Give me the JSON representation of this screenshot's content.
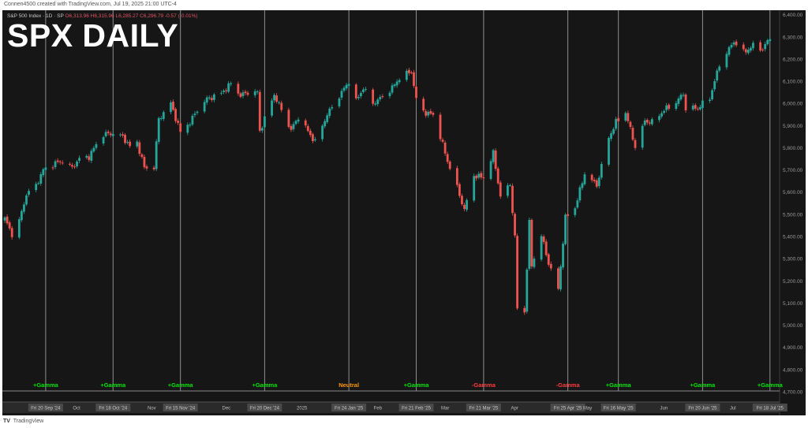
{
  "attribution": "Connen4500 created with TradingView.com, Jul 19, 2025 21:00 UTC-4",
  "legend": {
    "symbol": "S&P 500 Index · 1D · SP",
    "ohlc": "O6,313.96  H6,315.96  L6,285.27  C6,296.79  -0.57 (-0.01%)"
  },
  "footer": {
    "logo": "TV",
    "brand": "TradingView"
  },
  "colors": {
    "up": "#26a69a",
    "down": "#ef5350",
    "background": "#161616",
    "gamma_positive": "#00e600",
    "gamma_negative": "#ff3b3b",
    "gamma_neutral": "#ff9800"
  },
  "chart_data": {
    "type": "candlestick",
    "title": "SPX DAILY",
    "y_axis": {
      "ticks": [
        "6,400.00",
        "6,300.00",
        "6,200.00",
        "6,100.00",
        "6,000.00",
        "5,900.00",
        "5,800.00",
        "5,700.00",
        "5,600.00",
        "5,500.00",
        "5,400.00",
        "5,300.00",
        "5,200.00",
        "5,100.00",
        "5,000.00",
        "4,900.00",
        "4,800.00",
        "4,700.00"
      ],
      "range": [
        4700,
        6420
      ],
      "position": "right"
    },
    "x_axis": {
      "range": [
        "2024-09-02",
        "2025-07-22"
      ],
      "month_labels": [
        {
          "date": "2024-10-01",
          "label": "Oct"
        },
        {
          "date": "2024-11-01",
          "label": "Nov"
        },
        {
          "date": "2024-12-02",
          "label": "Dec"
        },
        {
          "date": "2025-01-02",
          "label": "2025"
        },
        {
          "date": "2025-02-03",
          "label": "Feb"
        },
        {
          "date": "2025-03-03",
          "label": "Mar"
        },
        {
          "date": "2025-04-01",
          "label": "Apr"
        },
        {
          "date": "2025-05-01",
          "label": "May"
        },
        {
          "date": "2025-06-02",
          "label": "Jun"
        },
        {
          "date": "2025-07-01",
          "label": "Jul"
        }
      ]
    },
    "expirations": [
      {
        "date": "2024-09-20",
        "label": "Fri 20 Sep '24",
        "gamma": "+Gamma"
      },
      {
        "date": "2024-10-18",
        "label": "Fri 18 Oct '24",
        "gamma": "+Gamma"
      },
      {
        "date": "2024-11-15",
        "label": "Fri 15 Nov '24",
        "gamma": "+Gamma"
      },
      {
        "date": "2024-12-20",
        "label": "Fri 20 Dec '24",
        "gamma": "+Gamma"
      },
      {
        "date": "2025-01-24",
        "label": "Fri 24 Jan '25",
        "gamma": "Neutral"
      },
      {
        "date": "2025-02-21",
        "label": "Fri 21 Feb '25",
        "gamma": "+Gamma"
      },
      {
        "date": "2025-03-21",
        "label": "Fri 21 Mar '25",
        "gamma": "-Gamma"
      },
      {
        "date": "2025-04-25",
        "label": "Fri 25 Apr '25",
        "gamma": "-Gamma"
      },
      {
        "date": "2025-05-16",
        "label": "Fri 16 May '25",
        "gamma": "+Gamma"
      },
      {
        "date": "2025-06-20",
        "label": "Fri 20 Jun '25",
        "gamma": "+Gamma"
      },
      {
        "date": "2025-07-18",
        "label": "Fri 18 Jul '25",
        "gamma": "+Gamma"
      }
    ],
    "close_path": [
      [
        "2024-09-03",
        5480
      ],
      [
        "2024-09-06",
        5410
      ],
      [
        "2024-09-09",
        5470
      ],
      [
        "2024-09-12",
        5590
      ],
      [
        "2024-09-16",
        5630
      ],
      [
        "2024-09-19",
        5700
      ],
      [
        "2024-09-24",
        5730
      ],
      [
        "2024-09-27",
        5740
      ],
      [
        "2024-10-01",
        5710
      ],
      [
        "2024-10-04",
        5750
      ],
      [
        "2024-10-08",
        5760
      ],
      [
        "2024-10-11",
        5815
      ],
      [
        "2024-10-14",
        5860
      ],
      [
        "2024-10-18",
        5865
      ],
      [
        "2024-10-22",
        5850
      ],
      [
        "2024-10-25",
        5805
      ],
      [
        "2024-10-28",
        5825
      ],
      [
        "2024-10-31",
        5710
      ],
      [
        "2024-11-04",
        5710
      ],
      [
        "2024-11-06",
        5930
      ],
      [
        "2024-11-11",
        6000
      ],
      [
        "2024-11-15",
        5870
      ],
      [
        "2024-11-19",
        5915
      ],
      [
        "2024-11-22",
        5970
      ],
      [
        "2024-11-26",
        6020
      ],
      [
        "2024-12-02",
        6045
      ],
      [
        "2024-12-06",
        6090
      ],
      [
        "2024-12-10",
        6035
      ],
      [
        "2024-12-13",
        6050
      ],
      [
        "2024-12-17",
        6050
      ],
      [
        "2024-12-18",
        5875
      ],
      [
        "2024-12-20",
        5930
      ],
      [
        "2024-12-24",
        6040
      ],
      [
        "2024-12-27",
        5970
      ],
      [
        "2024-12-31",
        5880
      ],
      [
        "2025-01-03",
        5940
      ],
      [
        "2025-01-10",
        5825
      ],
      [
        "2025-01-15",
        5950
      ],
      [
        "2025-01-21",
        6050
      ],
      [
        "2025-01-24",
        6100
      ],
      [
        "2025-01-27",
        6010
      ],
      [
        "2025-01-30",
        6070
      ],
      [
        "2025-02-03",
        6000
      ],
      [
        "2025-02-07",
        6030
      ],
      [
        "2025-02-11",
        6070
      ],
      [
        "2025-02-14",
        6115
      ],
      [
        "2025-02-19",
        6145
      ],
      [
        "2025-02-21",
        6015
      ],
      [
        "2025-02-25",
        5955
      ],
      [
        "2025-02-28",
        5950
      ],
      [
        "2025-03-03",
        5850
      ],
      [
        "2025-03-06",
        5740
      ],
      [
        "2025-03-10",
        5620
      ],
      [
        "2025-03-13",
        5520
      ],
      [
        "2025-03-17",
        5675
      ],
      [
        "2025-03-21",
        5665
      ],
      [
        "2025-03-25",
        5775
      ],
      [
        "2025-03-28",
        5580
      ],
      [
        "2025-04-01",
        5635
      ],
      [
        "2025-04-03",
        5395
      ],
      [
        "2025-04-04",
        5075
      ],
      [
        "2025-04-07",
        5060
      ],
      [
        "2025-04-09",
        5460
      ],
      [
        "2025-04-10",
        5270
      ],
      [
        "2025-04-14",
        5405
      ],
      [
        "2025-04-17",
        5280
      ],
      [
        "2025-04-21",
        5160
      ],
      [
        "2025-04-24",
        5485
      ],
      [
        "2025-04-28",
        5530
      ],
      [
        "2025-05-02",
        5685
      ],
      [
        "2025-05-07",
        5630
      ],
      [
        "2025-05-12",
        5845
      ],
      [
        "2025-05-15",
        5915
      ],
      [
        "2025-05-19",
        5960
      ],
      [
        "2025-05-23",
        5805
      ],
      [
        "2025-05-27",
        5920
      ],
      [
        "2025-05-30",
        5915
      ],
      [
        "2025-06-04",
        5970
      ],
      [
        "2025-06-09",
        6005
      ],
      [
        "2025-06-12",
        6045
      ],
      [
        "2025-06-13",
        5975
      ],
      [
        "2025-06-18",
        5980
      ],
      [
        "2025-06-23",
        6025
      ],
      [
        "2025-06-27",
        6175
      ],
      [
        "2025-07-03",
        6280
      ],
      [
        "2025-07-07",
        6230
      ],
      [
        "2025-07-11",
        6260
      ],
      [
        "2025-07-15",
        6245
      ],
      [
        "2025-07-18",
        6297
      ]
    ]
  }
}
